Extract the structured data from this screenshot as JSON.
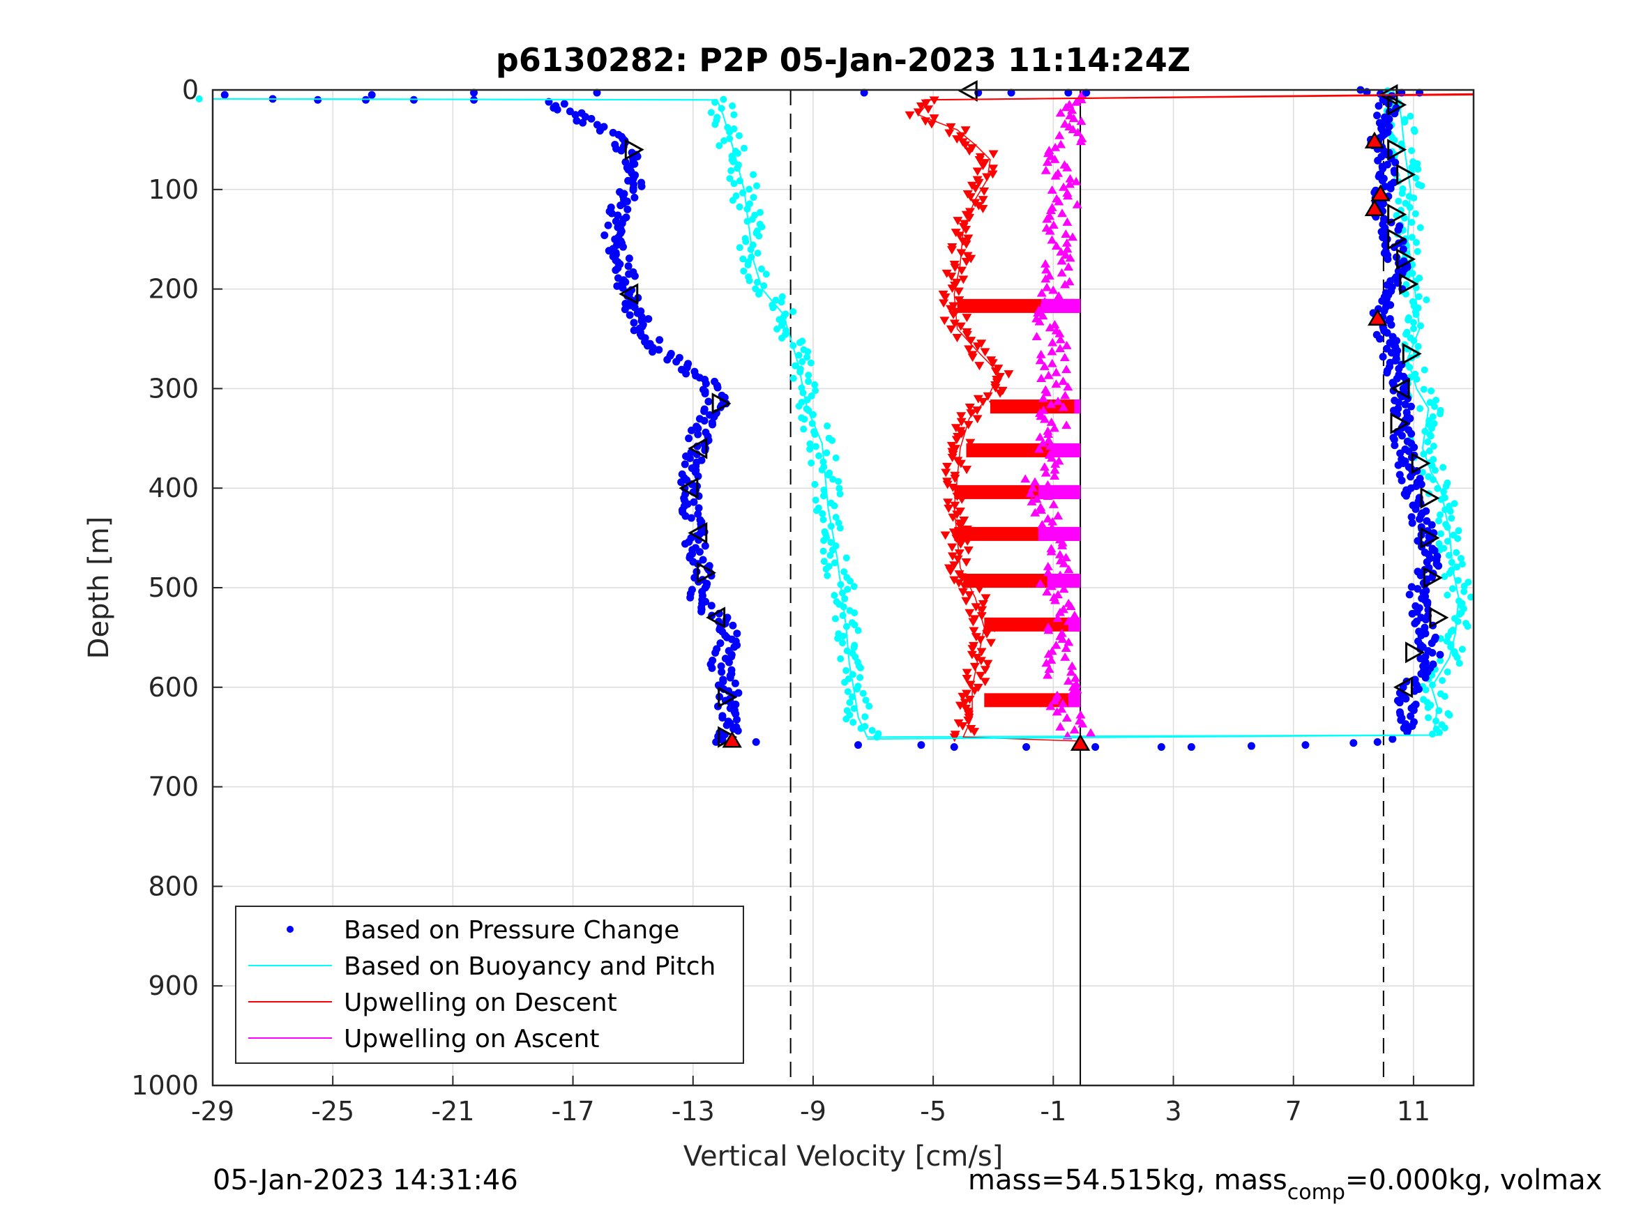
{
  "chart_data": {
    "type": "scatter",
    "title": "p6130282: P2P 05-Jan-2023 11:14:24Z",
    "xlabel": "Vertical Velocity [cm/s]",
    "ylabel": "Depth [m]",
    "xlim": [
      -29,
      13
    ],
    "ylim": [
      0,
      1000
    ],
    "y_reversed": true,
    "grid": true,
    "xticks": [
      -29,
      -25,
      -21,
      -17,
      -13,
      -9,
      -5,
      -1,
      3,
      7,
      11
    ],
    "xtick_labels": [
      "-29",
      "-25",
      "-21",
      "-17",
      "-13",
      "-9",
      "-5",
      "-1",
      "3",
      "7",
      "11"
    ],
    "yticks": [
      0,
      100,
      200,
      300,
      400,
      500,
      600,
      700,
      800,
      900,
      1000
    ],
    "ytick_labels": [
      "0",
      "100",
      "200",
      "300",
      "400",
      "500",
      "600",
      "700",
      "800",
      "900",
      "1000"
    ],
    "legend_position": "bottom-left",
    "reference_lines": {
      "dashed_x": [
        -9.75,
        10
      ],
      "solid_x": -0.1,
      "solid_depth_range": [
        0,
        1000
      ]
    },
    "series": [
      {
        "name": "Based on Pressure Change",
        "color": "#0000ff",
        "marker": "dot",
        "descent": [
          [
            -28.6,
            5
          ],
          [
            -27,
            9
          ],
          [
            -25.5,
            10
          ],
          [
            -23.9,
            10
          ],
          [
            -23.7,
            5
          ],
          [
            -22.3,
            10
          ],
          [
            -20.3,
            10
          ],
          [
            -17.8,
            12
          ],
          [
            -17.3,
            18
          ],
          [
            -16.9,
            25
          ],
          [
            -16.4,
            35
          ],
          [
            -15.7,
            45
          ],
          [
            -15.3,
            55
          ],
          [
            -15.1,
            65
          ],
          [
            -15.2,
            80
          ],
          [
            -15.0,
            95
          ],
          [
            -15.3,
            110
          ],
          [
            -15.6,
            130
          ],
          [
            -15.7,
            150
          ],
          [
            -15.3,
            175
          ],
          [
            -15.2,
            205
          ],
          [
            -14.8,
            230
          ],
          [
            -14.4,
            255
          ],
          [
            -13.5,
            275
          ],
          [
            -12.4,
            295
          ],
          [
            -12.2,
            315
          ],
          [
            -12.7,
            340
          ],
          [
            -12.9,
            360
          ],
          [
            -13.0,
            380
          ],
          [
            -13.2,
            400
          ],
          [
            -13.0,
            430
          ],
          [
            -12.9,
            460
          ],
          [
            -12.7,
            490
          ],
          [
            -12.8,
            510
          ],
          [
            -12.2,
            530
          ],
          [
            -11.7,
            550
          ],
          [
            -12.1,
            575
          ],
          [
            -11.8,
            600
          ],
          [
            -11.9,
            625
          ],
          [
            -11.7,
            640
          ],
          [
            -12.0,
            655
          ]
        ],
        "bottom": [
          [
            -10.9,
            655
          ],
          [
            -7.5,
            658
          ],
          [
            -5.4,
            658
          ],
          [
            -4.3,
            660
          ],
          [
            -1.9,
            660
          ],
          [
            0.4,
            660
          ],
          [
            2.6,
            660
          ],
          [
            3.6,
            660
          ],
          [
            5.6,
            659
          ],
          [
            7.4,
            658
          ],
          [
            9.0,
            656
          ],
          [
            9.8,
            655
          ],
          [
            10.3,
            652
          ]
        ],
        "ascent": [
          [
            10.8,
            645
          ],
          [
            10.7,
            625
          ],
          [
            10.9,
            600
          ],
          [
            11.6,
            575
          ],
          [
            11.4,
            550
          ],
          [
            11.3,
            530
          ],
          [
            11.1,
            505
          ],
          [
            11.5,
            480
          ],
          [
            11.4,
            455
          ],
          [
            11.2,
            425
          ],
          [
            11.0,
            400
          ],
          [
            10.8,
            375
          ],
          [
            10.7,
            355
          ],
          [
            10.6,
            330
          ],
          [
            10.7,
            310
          ],
          [
            10.5,
            290
          ],
          [
            10.3,
            270
          ],
          [
            10.1,
            250
          ],
          [
            9.9,
            230
          ],
          [
            10.1,
            210
          ],
          [
            10.6,
            190
          ],
          [
            10.4,
            170
          ],
          [
            10.3,
            150
          ],
          [
            10.2,
            135
          ],
          [
            9.8,
            118
          ],
          [
            9.9,
            105
          ],
          [
            10.2,
            85
          ],
          [
            10.1,
            65
          ],
          [
            9.6,
            50
          ],
          [
            10.0,
            35
          ],
          [
            10.1,
            20
          ],
          [
            10.3,
            8
          ],
          [
            9.0,
            0
          ]
        ],
        "surface_top": [
          [
            -20.3,
            0
          ],
          [
            -16.2,
            0
          ],
          [
            -7.3,
            0
          ],
          [
            -3.5,
            0
          ],
          [
            -2.4,
            0
          ],
          [
            -0.5,
            0
          ],
          [
            0.1,
            0
          ],
          [
            10.6,
            0
          ],
          [
            11.2,
            0
          ]
        ]
      },
      {
        "name": "Based on Buoyancy and Pitch",
        "color": "#00ffff",
        "marker": "line",
        "points": [
          [
            -29,
            9
          ],
          [
            -12.2,
            10
          ],
          [
            -12.0,
            25
          ],
          [
            -11.7,
            55
          ],
          [
            -11.3,
            100
          ],
          [
            -11.0,
            170
          ],
          [
            -10.7,
            200
          ],
          [
            -10.0,
            225
          ],
          [
            -9.5,
            275
          ],
          [
            -9.2,
            320
          ],
          [
            -8.7,
            355
          ],
          [
            -8.5,
            420
          ],
          [
            -8.2,
            470
          ],
          [
            -7.9,
            540
          ],
          [
            -7.8,
            575
          ],
          [
            -7.6,
            610
          ],
          [
            -7.5,
            630
          ],
          [
            -7.2,
            650
          ],
          [
            11.9,
            648
          ],
          [
            11.7,
            640
          ],
          [
            11.8,
            620
          ],
          [
            11.6,
            600
          ],
          [
            12.2,
            570
          ],
          [
            12.4,
            545
          ],
          [
            12.5,
            510
          ],
          [
            12.3,
            480
          ],
          [
            12.2,
            445
          ],
          [
            11.9,
            400
          ],
          [
            11.6,
            385
          ],
          [
            11.3,
            360
          ],
          [
            11.5,
            320
          ],
          [
            11.1,
            300
          ],
          [
            10.8,
            270
          ],
          [
            11.2,
            240
          ],
          [
            11.0,
            190
          ],
          [
            10.8,
            150
          ],
          [
            10.9,
            100
          ],
          [
            10.7,
            60
          ],
          [
            10.6,
            30
          ],
          [
            10.5,
            10
          ],
          [
            10.3,
            0
          ]
        ]
      },
      {
        "name": "Upwelling on Descent",
        "color": "#ff0000",
        "marker": "triangle-down",
        "points": [
          [
            13,
            5
          ],
          [
            -5.1,
            10
          ],
          [
            -5.5,
            25
          ],
          [
            -4.2,
            40
          ],
          [
            -3.6,
            55
          ],
          [
            -3.1,
            70
          ],
          [
            -3.2,
            90
          ],
          [
            -3.6,
            110
          ],
          [
            -4.0,
            140
          ],
          [
            -4.1,
            175
          ],
          [
            -4.3,
            205
          ],
          [
            -4.2,
            240
          ],
          [
            -3.6,
            260
          ],
          [
            -2.8,
            285
          ],
          [
            -3.2,
            310
          ],
          [
            -3.8,
            330
          ],
          [
            -4.1,
            360
          ],
          [
            -4.2,
            390
          ],
          [
            -4.3,
            420
          ],
          [
            -4.2,
            450
          ],
          [
            -4.1,
            480
          ],
          [
            -3.6,
            510
          ],
          [
            -3.3,
            540
          ],
          [
            -3.5,
            570
          ],
          [
            -3.7,
            600
          ],
          [
            -3.7,
            630
          ],
          [
            -4.0,
            650
          ],
          [
            -0.2,
            654
          ]
        ],
        "bands": [
          [
            -4.2,
            217
          ],
          [
            -3.1,
            318
          ],
          [
            -3.9,
            362
          ],
          [
            -4.3,
            404
          ],
          [
            -4.3,
            446
          ],
          [
            -4.0,
            493
          ],
          [
            -3.3,
            537
          ],
          [
            -3.3,
            613
          ]
        ]
      },
      {
        "name": "Upwelling on Ascent",
        "color": "#ff00ff",
        "marker": "triangle-up",
        "points": [
          [
            0.0,
            652
          ],
          [
            -0.4,
            640
          ],
          [
            -0.6,
            625
          ],
          [
            -0.7,
            600
          ],
          [
            -0.9,
            570
          ],
          [
            -0.7,
            540
          ],
          [
            -0.9,
            510
          ],
          [
            -1.0,
            485
          ],
          [
            -0.8,
            455
          ],
          [
            -1.4,
            425
          ],
          [
            -1.6,
            400
          ],
          [
            -1.2,
            370
          ],
          [
            -1.0,
            340
          ],
          [
            -0.9,
            310
          ],
          [
            -1.0,
            290
          ],
          [
            -1.0,
            260
          ],
          [
            -1.3,
            230
          ],
          [
            -0.9,
            190
          ],
          [
            -0.8,
            160
          ],
          [
            -0.8,
            130
          ],
          [
            -0.5,
            95
          ],
          [
            -1.0,
            70
          ],
          [
            -0.3,
            40
          ],
          [
            -0.5,
            15
          ],
          [
            0.3,
            5
          ]
        ],
        "bands": [
          [
            -0.1,
            217
          ],
          [
            -0.1,
            318
          ],
          [
            -0.1,
            362
          ],
          [
            -0.1,
            404
          ],
          [
            -0.1,
            446
          ],
          [
            -0.1,
            493
          ],
          [
            -0.1,
            537
          ],
          [
            -0.1,
            613
          ]
        ]
      }
    ],
    "annotations": {
      "footer_left": "05-Jan-2023 14:31:46",
      "footer_right_a": "mass=54.515kg, mass",
      "footer_right_sub": "comp",
      "footer_right_b": "=0.000kg, volmax"
    }
  }
}
